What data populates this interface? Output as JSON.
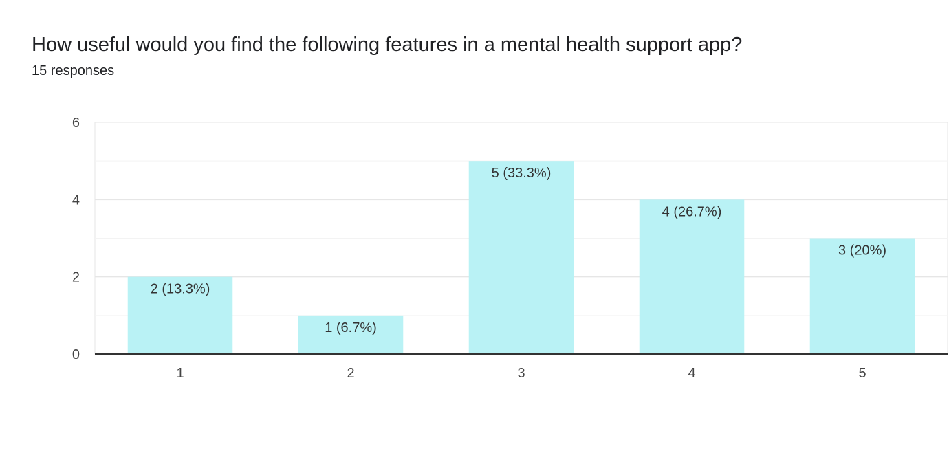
{
  "question": {
    "title": "How useful would you find the following features in a mental health support app?",
    "responses": "15 responses"
  },
  "colors": {
    "bar": "#b9f2f5",
    "grid_major": "#e6e6e6",
    "grid_minor": "#f3f3f3",
    "axis": "#333333"
  },
  "chart_data": {
    "type": "bar",
    "categories": [
      "1",
      "2",
      "3",
      "4",
      "5"
    ],
    "values": [
      2,
      1,
      5,
      4,
      3
    ],
    "data_labels": [
      "2 (13.3%)",
      "1 (6.7%)",
      "5 (33.3%)",
      "4 (26.7%)",
      "3 (20%)"
    ],
    "title": "How useful would you find the following features in a mental health support app?",
    "xlabel": "",
    "ylabel": "",
    "ylim": [
      0,
      6
    ],
    "yticks": [
      "0",
      "2",
      "4",
      "6"
    ],
    "grid": true,
    "legend": "none"
  }
}
